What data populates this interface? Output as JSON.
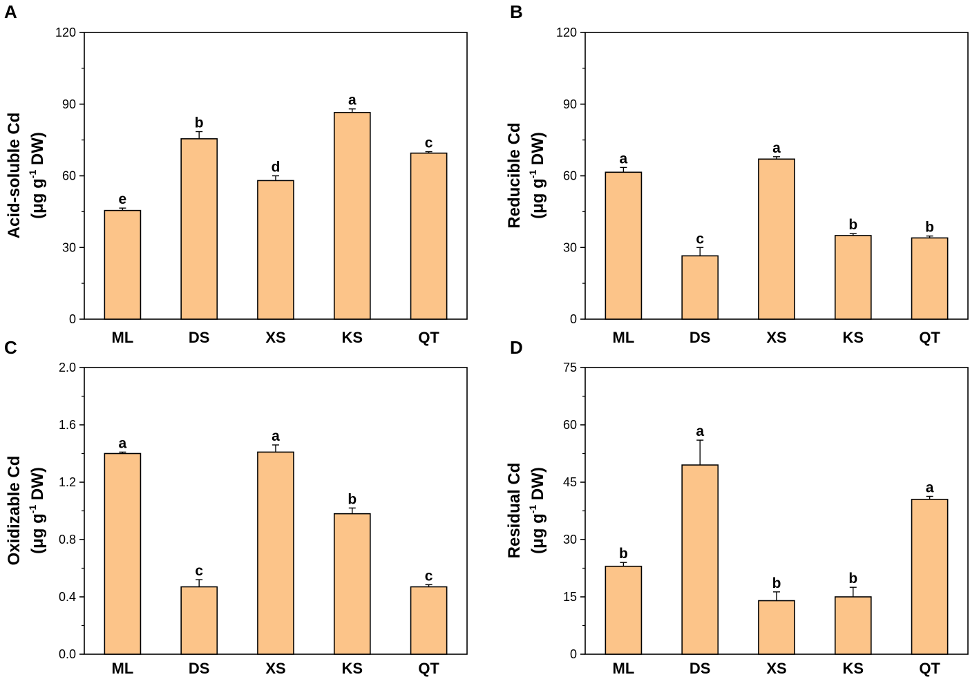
{
  "figure": {
    "bar_color": "#FCC489",
    "bar_edge_color": "#000000",
    "axis_color": "#000000"
  },
  "chart_data": [
    {
      "panel": "A",
      "type": "bar",
      "categories": [
        "ML",
        "DS",
        "XS",
        "KS",
        "QT"
      ],
      "values": [
        45.5,
        75.5,
        58,
        86.5,
        69.5
      ],
      "errors": [
        1.0,
        3.0,
        2.0,
        1.5,
        0.6
      ],
      "significance": [
        "e",
        "b",
        "d",
        "a",
        "c"
      ],
      "ylabel": "Acid-soluble Cd",
      "yunit": {
        "prefix": "(μg g",
        "sup": "-1",
        "suffix": " DW)"
      },
      "ylim": [
        0,
        120
      ],
      "yticks": [
        0,
        30,
        60,
        90,
        120
      ],
      "ytick_labels": [
        "0",
        "30",
        "60",
        "90",
        "120"
      ]
    },
    {
      "panel": "B",
      "type": "bar",
      "categories": [
        "ML",
        "DS",
        "XS",
        "KS",
        "QT"
      ],
      "values": [
        61.5,
        26.5,
        67,
        35,
        34
      ],
      "errors": [
        2.0,
        3.5,
        1.0,
        0.8,
        0.8
      ],
      "significance": [
        "a",
        "c",
        "a",
        "b",
        "b"
      ],
      "ylabel": "Reducible Cd",
      "yunit": {
        "prefix": "(μg g",
        "sup": "-1",
        "suffix": " DW)"
      },
      "ylim": [
        0,
        120
      ],
      "yticks": [
        0,
        30,
        60,
        90,
        120
      ],
      "ytick_labels": [
        "0",
        "30",
        "60",
        "90",
        "120"
      ]
    },
    {
      "panel": "C",
      "type": "bar",
      "categories": [
        "ML",
        "DS",
        "XS",
        "KS",
        "QT"
      ],
      "values": [
        1.4,
        0.47,
        1.41,
        0.98,
        0.47
      ],
      "errors": [
        0.01,
        0.05,
        0.05,
        0.04,
        0.015
      ],
      "significance": [
        "a",
        "c",
        "a",
        "b",
        "c"
      ],
      "ylabel": "Oxidizable Cd",
      "yunit": {
        "prefix": "(μg g",
        "sup": "-1",
        "suffix": " DW)"
      },
      "ylim": [
        0,
        2.0
      ],
      "yticks": [
        0,
        0.4,
        0.8,
        1.2,
        1.6,
        2.0
      ],
      "ytick_labels": [
        "0.0",
        "0.4",
        "0.8",
        "1.2",
        "1.6",
        "2.0"
      ]
    },
    {
      "panel": "D",
      "type": "bar",
      "categories": [
        "ML",
        "DS",
        "XS",
        "KS",
        "QT"
      ],
      "values": [
        23,
        49.5,
        14,
        15,
        40.5
      ],
      "errors": [
        1.0,
        6.5,
        2.3,
        2.5,
        0.8
      ],
      "significance": [
        "b",
        "a",
        "b",
        "b",
        "a"
      ],
      "ylabel": "Residual Cd",
      "yunit": {
        "prefix": "(μg g",
        "sup": "-1",
        "suffix": " DW)"
      },
      "ylim": [
        0,
        75
      ],
      "yticks": [
        0,
        15,
        30,
        45,
        60,
        75
      ],
      "ytick_labels": [
        "0",
        "15",
        "30",
        "45",
        "60",
        "75"
      ]
    }
  ]
}
